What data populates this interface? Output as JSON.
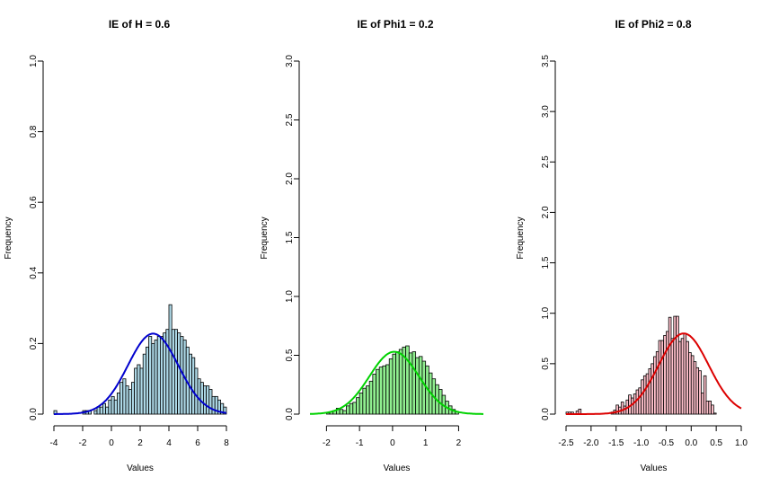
{
  "chart_data": [
    {
      "type": "bar",
      "title": "IE of H = 0.6",
      "xlabel": "Values",
      "ylabel": "Frequency",
      "xlim": [
        -4,
        8
      ],
      "ylim": [
        0,
        1.0
      ],
      "xticks": [
        -4,
        -2,
        0,
        2,
        4,
        6,
        8
      ],
      "yticks": [
        0.0,
        0.2,
        0.4,
        0.6,
        0.8,
        1.0
      ],
      "bar_color": "#add8e6",
      "curve_color": "#0000cd",
      "bin_width": 0.2,
      "bins_start": -4.0,
      "values": [
        0.01,
        0,
        0,
        0,
        0,
        0,
        0,
        0,
        0,
        0,
        0.01,
        0.01,
        0.01,
        0,
        0.01,
        0.02,
        0.02,
        0.03,
        0.02,
        0.04,
        0.05,
        0.04,
        0.06,
        0.09,
        0.1,
        0.08,
        0.07,
        0.09,
        0.13,
        0.14,
        0.13,
        0.17,
        0.19,
        0.22,
        0.2,
        0.21,
        0.22,
        0.22,
        0.23,
        0.24,
        0.31,
        0.24,
        0.24,
        0.23,
        0.22,
        0.21,
        0.19,
        0.17,
        0.16,
        0.13,
        0.1,
        0.09,
        0.08,
        0.08,
        0.07,
        0.05,
        0.05,
        0.04,
        0.03,
        0.02
      ]
    },
    {
      "type": "bar",
      "title": "IE of Phi1 = 0.2",
      "xlabel": "Values",
      "ylabel": "Frequency",
      "xlim": [
        -2.5,
        2.75
      ],
      "ylim": [
        0,
        3.0
      ],
      "xticks": [
        -2,
        -1,
        0,
        1,
        2
      ],
      "yticks": [
        0.0,
        0.5,
        1.0,
        1.5,
        2.0,
        2.5,
        3.0
      ],
      "bar_color": "#90ee90",
      "curve_color": "#00d200",
      "bin_width": 0.1,
      "bins_start": -2.0,
      "values": [
        0.01,
        0.02,
        0.03,
        0.05,
        0.04,
        0.03,
        0.07,
        0.09,
        0.1,
        0.14,
        0.18,
        0.22,
        0.24,
        0.28,
        0.34,
        0.38,
        0.4,
        0.41,
        0.42,
        0.47,
        0.51,
        0.53,
        0.55,
        0.57,
        0.58,
        0.52,
        0.53,
        0.48,
        0.49,
        0.45,
        0.41,
        0.35,
        0.3,
        0.25,
        0.21,
        0.16,
        0.11,
        0.07,
        0.04,
        0.02
      ]
    },
    {
      "type": "bar",
      "title": "IE of Phi2 = 0.8",
      "xlabel": "Values",
      "ylabel": "Frequency",
      "xlim": [
        -2.5,
        1.0
      ],
      "ylim": [
        0,
        3.5
      ],
      "xticks": [
        -2.5,
        -2.0,
        -1.5,
        -1.0,
        -0.5,
        0.0,
        0.5,
        1.0
      ],
      "yticks": [
        0.0,
        0.5,
        1.0,
        1.5,
        2.0,
        2.5,
        3.0,
        3.5
      ],
      "bar_color": "#ffc0cb",
      "curve_color": "#dc0000",
      "bin_width": 0.05,
      "bins_start": -2.5,
      "values": [
        0.02,
        0.02,
        0.02,
        0,
        0.03,
        0.05,
        0,
        0,
        0,
        0,
        0,
        0,
        0,
        0,
        0,
        0,
        0,
        0,
        0.02,
        0.04,
        0.09,
        0.07,
        0.12,
        0.08,
        0.14,
        0.19,
        0.16,
        0.2,
        0.24,
        0.26,
        0.34,
        0.38,
        0.4,
        0.45,
        0.5,
        0.57,
        0.62,
        0.73,
        0.73,
        0.78,
        0.82,
        0.96,
        0.75,
        0.97,
        0.97,
        0.72,
        0.75,
        0.8,
        0.72,
        0.61,
        0.58,
        0.52,
        0.46,
        0.43,
        0.21,
        0.38,
        0.13,
        0.13,
        0.09,
        0.01
      ]
    }
  ]
}
